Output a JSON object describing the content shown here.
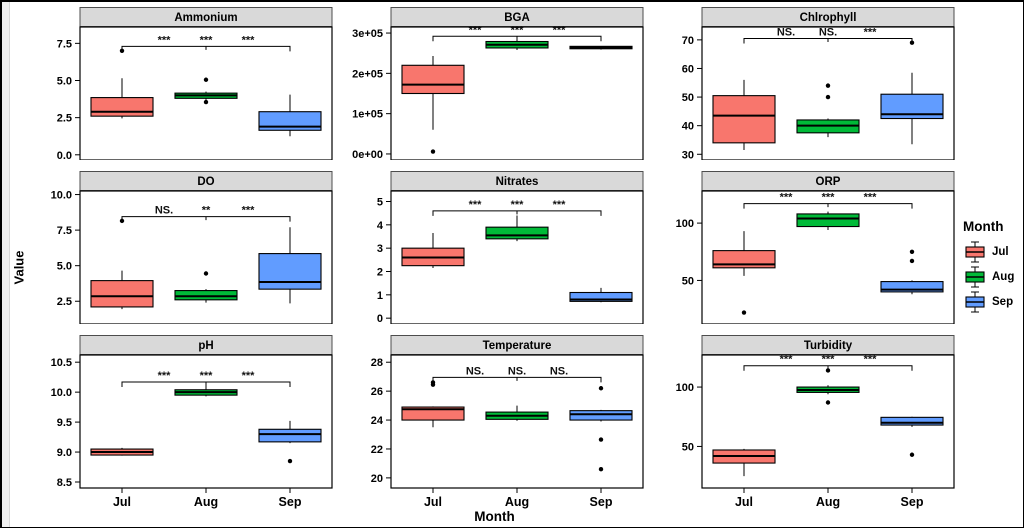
{
  "chart_data": {
    "type": "boxplot-facets",
    "ylabel": "Value",
    "xlabel": "Month",
    "categories": [
      "Jul",
      "Aug",
      "Sep"
    ],
    "colors": {
      "Jul": "#F8766D",
      "Aug": "#00BA38",
      "Sep": "#619CFF",
      "strip": "#D9D9D9"
    },
    "legend": {
      "title": "Month",
      "entries": [
        "Jul",
        "Aug",
        "Sep"
      ]
    },
    "panels": [
      {
        "title": "Ammonium",
        "ylim": [
          -0.35,
          8.6
        ],
        "yticks": [
          {
            "v": 0,
            "label": "0.0"
          },
          {
            "v": 2.5,
            "label": "2.5"
          },
          {
            "v": 5,
            "label": "5.0"
          },
          {
            "v": 7.5,
            "label": "7.5"
          }
        ],
        "boxes": [
          {
            "group": "Jul",
            "wl": 2.45,
            "q1": 2.6,
            "med": 2.9,
            "q3": 3.85,
            "wh": 5.15,
            "outliers": [
              7.0
            ]
          },
          {
            "group": "Aug",
            "wl": 3.7,
            "q1": 3.8,
            "med": 4.0,
            "q3": 4.15,
            "wh": 4.25,
            "outliers": [
              5.05,
              3.55
            ]
          },
          {
            "group": "Sep",
            "wl": 1.25,
            "q1": 1.65,
            "med": 1.9,
            "q3": 2.9,
            "wh": 4.05,
            "outliers": []
          }
        ],
        "sig": [
          "***",
          "***",
          "***"
        ],
        "bracket_y": 7.3
      },
      {
        "title": "BGA",
        "ylim": [
          -15000,
          315000
        ],
        "yticks": [
          {
            "v": 0,
            "label": "0e+00"
          },
          {
            "v": 100000,
            "label": "1e+05"
          },
          {
            "v": 200000,
            "label": "2e+05"
          },
          {
            "v": 300000,
            "label": "3e+05"
          }
        ],
        "boxes": [
          {
            "group": "Jul",
            "wl": 60000,
            "q1": 150000,
            "med": 172000,
            "q3": 220000,
            "wh": 243000,
            "outliers": [
              6000
            ]
          },
          {
            "group": "Aug",
            "wl": 258000,
            "q1": 263000,
            "med": 271000,
            "q3": 279000,
            "wh": 287000,
            "outliers": []
          },
          {
            "group": "Sep",
            "wl": 259000,
            "q1": 261000,
            "med": 264000,
            "q3": 267000,
            "wh": 268000,
            "outliers": []
          }
        ],
        "sig": [
          "***",
          "***",
          "***"
        ],
        "bracket_y": 292000
      },
      {
        "title": "Chlrophyll",
        "ylim": [
          28,
          74.5
        ],
        "yticks": [
          {
            "v": 30,
            "label": "30"
          },
          {
            "v": 40,
            "label": "40"
          },
          {
            "v": 50,
            "label": "50"
          },
          {
            "v": 60,
            "label": "60"
          },
          {
            "v": 70,
            "label": "70"
          }
        ],
        "boxes": [
          {
            "group": "Jul",
            "wl": 31.5,
            "q1": 34,
            "med": 43.5,
            "q3": 50.5,
            "wh": 56,
            "outliers": []
          },
          {
            "group": "Aug",
            "wl": 36,
            "q1": 37.5,
            "med": 40,
            "q3": 42,
            "wh": 42.5,
            "outliers": [
              54,
              50
            ]
          },
          {
            "group": "Sep",
            "wl": 33.5,
            "q1": 42.5,
            "med": 44,
            "q3": 51,
            "wh": 58.5,
            "outliers": [
              69
            ]
          }
        ],
        "sig": [
          "NS.",
          "NS.",
          "***"
        ],
        "bracket_y": 70.5
      },
      {
        "title": "DO",
        "ylim": [
          0.9,
          10.25
        ],
        "yticks": [
          {
            "v": 2.5,
            "label": "2.5"
          },
          {
            "v": 5,
            "label": "5.0"
          },
          {
            "v": 7.5,
            "label": "7.5"
          },
          {
            "v": 10,
            "label": "10.0"
          }
        ],
        "boxes": [
          {
            "group": "Jul",
            "wl": 1.95,
            "q1": 2.1,
            "med": 2.85,
            "q3": 3.95,
            "wh": 4.65,
            "outliers": [
              8.15
            ]
          },
          {
            "group": "Aug",
            "wl": 2.4,
            "q1": 2.6,
            "med": 2.85,
            "q3": 3.25,
            "wh": 3.35,
            "outliers": [
              4.45
            ]
          },
          {
            "group": "Sep",
            "wl": 2.35,
            "q1": 3.35,
            "med": 3.85,
            "q3": 5.85,
            "wh": 7.7,
            "outliers": []
          }
        ],
        "sig": [
          "NS.",
          "**",
          "***"
        ],
        "bracket_y": 8.45
      },
      {
        "title": "Nitrates",
        "ylim": [
          -0.25,
          5.45
        ],
        "yticks": [
          {
            "v": 0,
            "label": "0"
          },
          {
            "v": 1,
            "label": "1"
          },
          {
            "v": 2,
            "label": "2"
          },
          {
            "v": 3,
            "label": "3"
          },
          {
            "v": 4,
            "label": "4"
          },
          {
            "v": 5,
            "label": "5"
          }
        ],
        "boxes": [
          {
            "group": "Jul",
            "wl": 2.15,
            "q1": 2.25,
            "med": 2.6,
            "q3": 3.0,
            "wh": 3.65,
            "outliers": []
          },
          {
            "group": "Aug",
            "wl": 3.3,
            "q1": 3.4,
            "med": 3.55,
            "q3": 3.9,
            "wh": 4.4,
            "outliers": []
          },
          {
            "group": "Sep",
            "wl": 0.68,
            "q1": 0.72,
            "med": 0.8,
            "q3": 1.1,
            "wh": 1.3,
            "outliers": []
          }
        ],
        "sig": [
          "***",
          "***",
          "***"
        ],
        "bracket_y": 4.6
      },
      {
        "title": "ORP",
        "ylim": [
          12,
          128
        ],
        "yticks": [
          {
            "v": 50,
            "label": "50"
          },
          {
            "v": 100,
            "label": "100"
          }
        ],
        "boxes": [
          {
            "group": "Jul",
            "wl": 54,
            "q1": 61,
            "med": 64,
            "q3": 76,
            "wh": 93,
            "outliers": [
              22
            ]
          },
          {
            "group": "Aug",
            "wl": 94,
            "q1": 97,
            "med": 104,
            "q3": 108,
            "wh": 110,
            "outliers": []
          },
          {
            "group": "Sep",
            "wl": 38,
            "q1": 40,
            "med": 42,
            "q3": 49,
            "wh": 50,
            "outliers": [
              75,
              67
            ]
          }
        ],
        "sig": [
          "***",
          "***",
          "***"
        ],
        "bracket_y": 117
      },
      {
        "title": "pH",
        "ylim": [
          8.4,
          10.62
        ],
        "yticks": [
          {
            "v": 8.5,
            "label": "8.5"
          },
          {
            "v": 9,
            "label": "9.0"
          },
          {
            "v": 9.5,
            "label": "9.5"
          },
          {
            "v": 10,
            "label": "10.0"
          },
          {
            "v": 10.5,
            "label": "10.5"
          }
        ],
        "boxes": [
          {
            "group": "Jul",
            "wl": 8.94,
            "q1": 8.95,
            "med": 9.0,
            "q3": 9.05,
            "wh": 9.07,
            "outliers": []
          },
          {
            "group": "Aug",
            "wl": 9.93,
            "q1": 9.95,
            "med": 10.0,
            "q3": 10.04,
            "wh": 10.12,
            "outliers": []
          },
          {
            "group": "Sep",
            "wl": 9.15,
            "q1": 9.17,
            "med": 9.3,
            "q3": 9.38,
            "wh": 9.52,
            "outliers": [
              8.85
            ]
          }
        ],
        "sig": [
          "***",
          "***",
          "***"
        ],
        "bracket_y": 10.17
      },
      {
        "title": "Temperature",
        "ylim": [
          19.3,
          28.5
        ],
        "yticks": [
          {
            "v": 20,
            "label": "20"
          },
          {
            "v": 22,
            "label": "22"
          },
          {
            "v": 24,
            "label": "24"
          },
          {
            "v": 26,
            "label": "26"
          },
          {
            "v": 28,
            "label": "28"
          }
        ],
        "boxes": [
          {
            "group": "Jul",
            "wl": 23.5,
            "q1": 24.0,
            "med": 24.75,
            "q3": 24.9,
            "wh": 24.95,
            "outliers": [
              26.6,
              26.45
            ]
          },
          {
            "group": "Aug",
            "wl": 23.95,
            "q1": 24.05,
            "med": 24.3,
            "q3": 24.55,
            "wh": 25.0,
            "outliers": []
          },
          {
            "group": "Sep",
            "wl": 23.9,
            "q1": 24.0,
            "med": 24.4,
            "q3": 24.65,
            "wh": 24.7,
            "outliers": [
              26.2,
              22.65,
              20.6
            ]
          }
        ],
        "sig": [
          "NS.",
          "NS.",
          "NS."
        ],
        "bracket_y": 26.95
      },
      {
        "title": "Turbidity",
        "ylim": [
          15,
          127
        ],
        "yticks": [
          {
            "v": 50,
            "label": "50"
          },
          {
            "v": 100,
            "label": "100"
          }
        ],
        "boxes": [
          {
            "group": "Jul",
            "wl": 25,
            "q1": 36,
            "med": 42,
            "q3": 47,
            "wh": 48,
            "outliers": []
          },
          {
            "group": "Aug",
            "wl": 94,
            "q1": 95.5,
            "med": 97.5,
            "q3": 100,
            "wh": 101.5,
            "outliers": [
              114,
              87
            ]
          },
          {
            "group": "Sep",
            "wl": 66.5,
            "q1": 68,
            "med": 70,
            "q3": 74.5,
            "wh": 75,
            "outliers": [
              43
            ]
          }
        ],
        "sig": [
          "***",
          "***",
          "***"
        ],
        "bracket_y": 118
      }
    ]
  }
}
